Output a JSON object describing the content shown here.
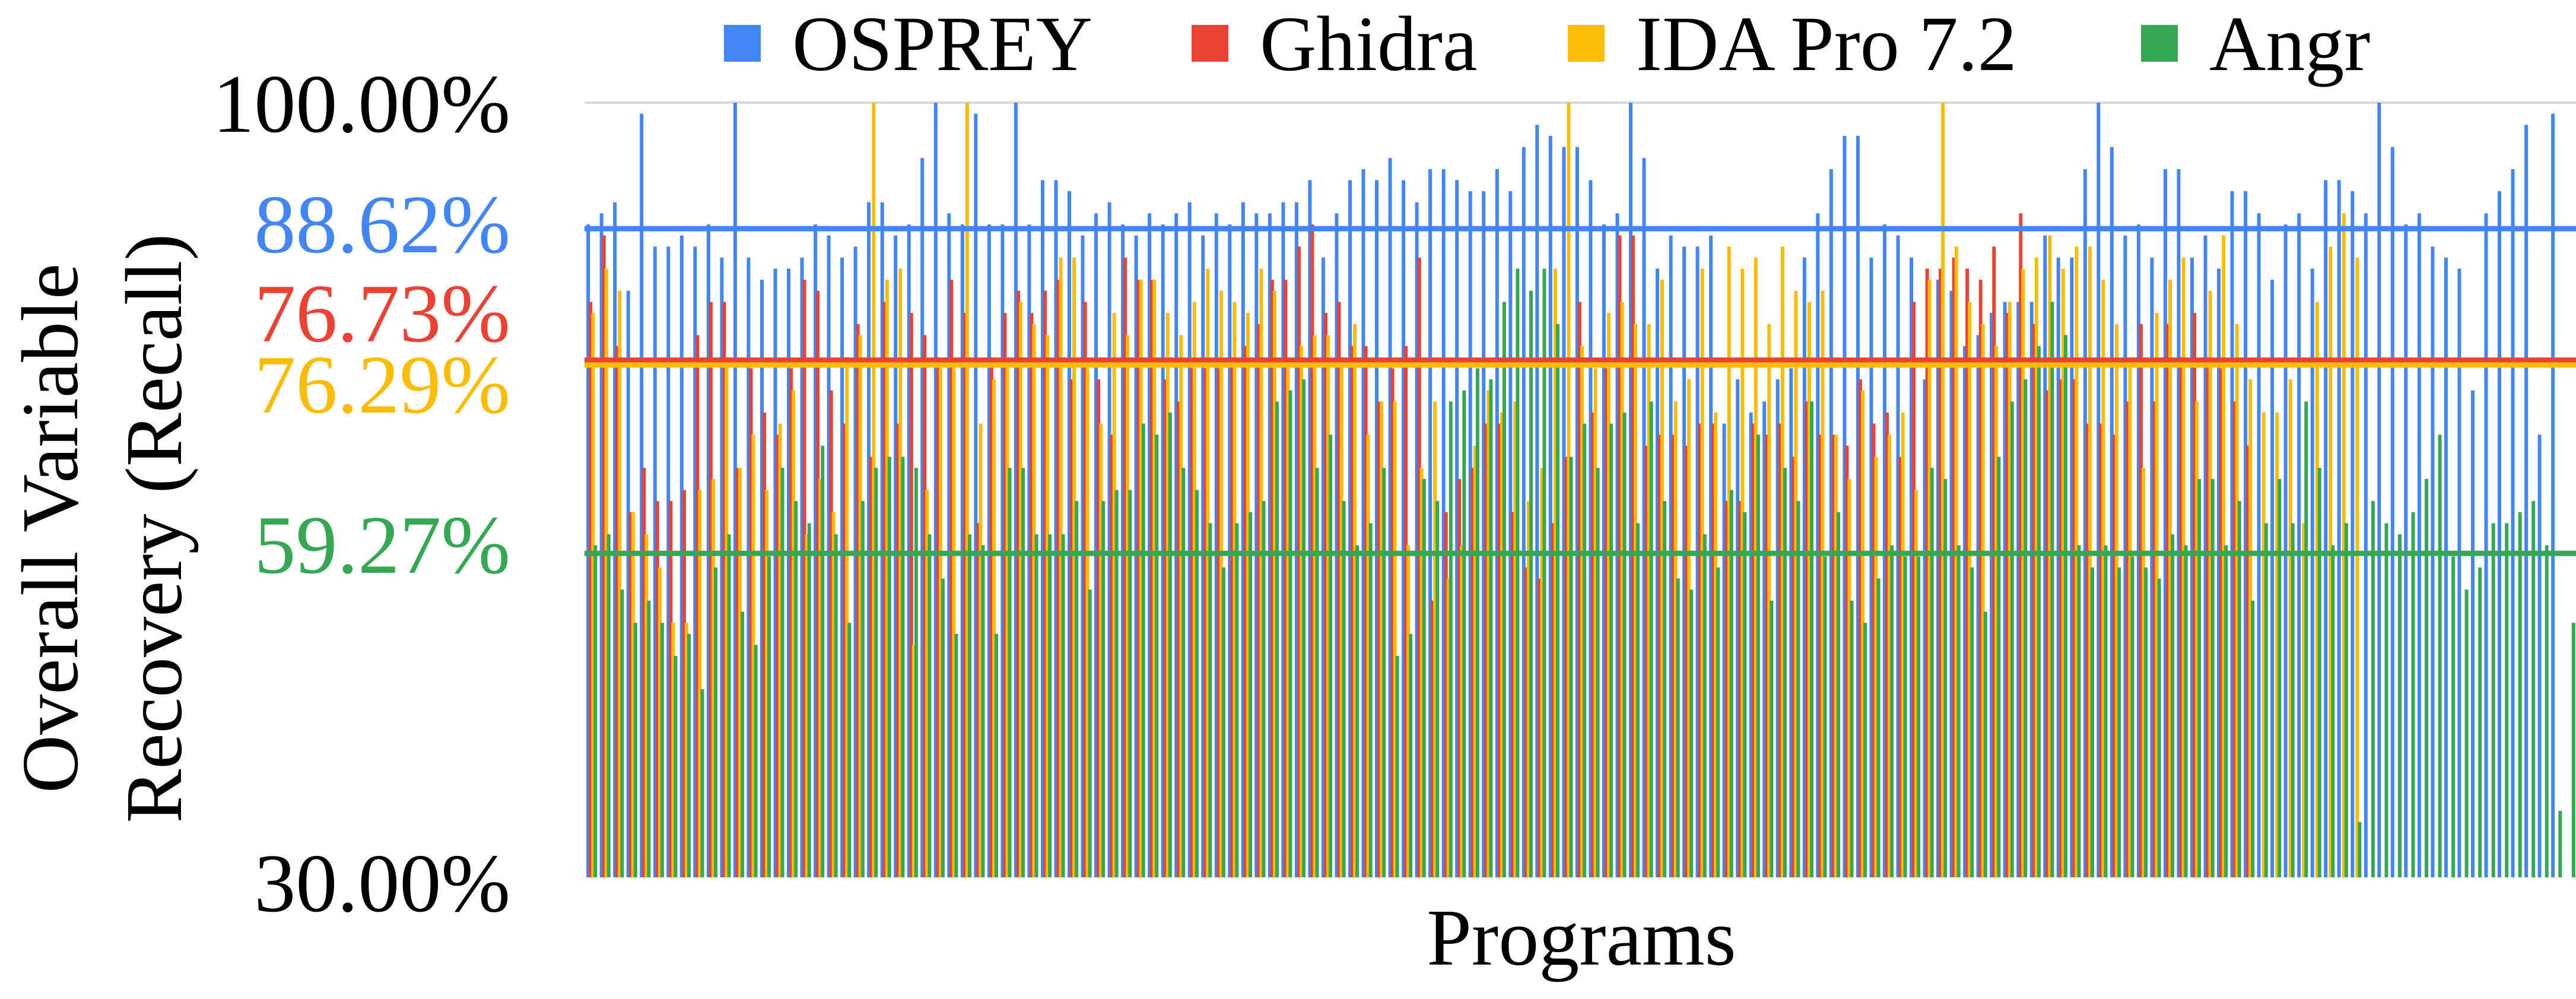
{
  "chart_data": {
    "type": "bar",
    "xlabel": "Programs",
    "ylabel_lines": [
      "Overall Variable",
      "Recovery (Recall)"
    ],
    "ylim": [
      30,
      100
    ],
    "y_ticks": [
      {
        "value": 30,
        "label": "30.00%"
      },
      {
        "value": 100,
        "label": "100.00%"
      }
    ],
    "legend_position": "top",
    "series": [
      {
        "name": "OSPREY",
        "color": "#4285F4",
        "average": 88.62,
        "average_label": "88.62%",
        "values": [
          89,
          90,
          91,
          83,
          99,
          87,
          87,
          88,
          87,
          89,
          86,
          100,
          86,
          84,
          85,
          85,
          86,
          89,
          88,
          86,
          87,
          91,
          91,
          88,
          89,
          95,
          100,
          90,
          89,
          99,
          89,
          89,
          100,
          89,
          93,
          93,
          92,
          88,
          90,
          91,
          89,
          88,
          90,
          89,
          90,
          91,
          88,
          90,
          89,
          91,
          90,
          90,
          91,
          91,
          93,
          86,
          90,
          93,
          94,
          93,
          95,
          93,
          91,
          94,
          94,
          93,
          92,
          92,
          94,
          92,
          96,
          98,
          97,
          96,
          96,
          93,
          89,
          90,
          100,
          95,
          85,
          88,
          87,
          87,
          88,
          71,
          75,
          72,
          73,
          75,
          76,
          86,
          90,
          94,
          97,
          97,
          86,
          89,
          88,
          86,
          75,
          84,
          83,
          78,
          79,
          81,
          82,
          82,
          82,
          88,
          86,
          86,
          94,
          100,
          96,
          88,
          89,
          86,
          94,
          94,
          86,
          88,
          85,
          92,
          92,
          90,
          84,
          89,
          90,
          85,
          93,
          93,
          92,
          90,
          100,
          96,
          89,
          90,
          87,
          86,
          85,
          74,
          90,
          92,
          94,
          98,
          70,
          99
        ]
      },
      {
        "name": "Ghidra",
        "color": "#EA4335",
        "average": 76.73,
        "average_label": "76.73%",
        "values": [
          82,
          88,
          78,
          63,
          67,
          64,
          64,
          65,
          79,
          82,
          82,
          67,
          76,
          72,
          70,
          76,
          84,
          83,
          74,
          71,
          80,
          68,
          82,
          71,
          81,
          79,
          77,
          84,
          81,
          62,
          77,
          81,
          83,
          81,
          83,
          84,
          75,
          82,
          75,
          70,
          86,
          84,
          84,
          75,
          73,
          76,
          76,
          76,
          77,
          78,
          80,
          84,
          84,
          87,
          89,
          81,
          82,
          78,
          78,
          73,
          76,
          78,
          86,
          55,
          63,
          66,
          67,
          71,
          71,
          63,
          58,
          57,
          62,
          68,
          82,
          72,
          76,
          88,
          88,
          69,
          70,
          70,
          69,
          71,
          71,
          64,
          64,
          71,
          70,
          71,
          68,
          73,
          70,
          70,
          69,
          75,
          71,
          72,
          68,
          82,
          85,
          85,
          86,
          85,
          84,
          87,
          81,
          90,
          80,
          74,
          75,
          75,
          71,
          71,
          70,
          73,
          80,
          73,
          80,
          77,
          81,
          77,
          76,
          73,
          69
        ]
      },
      {
        "name": "IDA Pro 7.2",
        "color": "#FBBC04",
        "average": 76.29,
        "average_label": "76.29%",
        "values": [
          81,
          85,
          83,
          63,
          61,
          58,
          53,
          53,
          65,
          66,
          77,
          67,
          70,
          65,
          71,
          74,
          61,
          66,
          63,
          77,
          79,
          100,
          84,
          85,
          51,
          65,
          76,
          76,
          100,
          71,
          75,
          77,
          82,
          80,
          79,
          86,
          86,
          76,
          71,
          81,
          79,
          84,
          84,
          81,
          79,
          82,
          85,
          83,
          82,
          81,
          85,
          83,
          76,
          78,
          79,
          79,
          77,
          80,
          70,
          73,
          73,
          60,
          67,
          73,
          57,
          60,
          69,
          74,
          72,
          73,
          64,
          67,
          85,
          100,
          78,
          76,
          81,
          82,
          80,
          80,
          84,
          73,
          75,
          85,
          72,
          87,
          85,
          86,
          80,
          87,
          83,
          82,
          83,
          70,
          66,
          74,
          68,
          70,
          72,
          65,
          84,
          100,
          87,
          82,
          80,
          78,
          82,
          85,
          86,
          88,
          85,
          87,
          87,
          84,
          80,
          77,
          67,
          81,
          84,
          86,
          73,
          83,
          88,
          80,
          75,
          72,
          72,
          75,
          62,
          82,
          87,
          90,
          86
        ]
      },
      {
        "name": "Angr",
        "color": "#34A853",
        "average": 59.27,
        "average_label": "59.27%",
        "values": [
          60,
          61,
          56,
          53,
          55,
          53,
          50,
          52,
          47,
          58,
          61,
          54,
          51,
          59,
          67,
          64,
          62,
          69,
          61,
          53,
          64,
          67,
          68,
          68,
          67,
          61,
          57,
          52,
          61,
          60,
          52,
          67,
          67,
          61,
          61,
          61,
          64,
          56,
          64,
          65,
          65,
          71,
          70,
          72,
          67,
          65,
          62,
          58,
          62,
          63,
          64,
          73,
          74,
          75,
          67,
          70,
          64,
          60,
          62,
          67,
          50,
          52,
          66,
          64,
          73,
          74,
          76,
          75,
          82,
          85,
          83,
          85,
          80,
          68,
          71,
          67,
          71,
          72,
          62,
          73,
          64,
          57,
          56,
          61,
          58,
          65,
          63,
          70,
          55,
          67,
          64,
          73,
          59,
          63,
          55,
          53,
          57,
          60,
          59,
          59,
          67,
          66,
          60,
          58,
          54,
          68,
          73,
          75,
          78,
          82,
          79,
          60,
          58,
          60,
          58,
          59,
          58,
          57,
          61,
          60,
          66,
          66,
          60,
          64,
          55,
          62,
          66,
          62,
          73,
          67,
          60,
          62,
          35,
          64,
          62,
          61,
          63,
          66,
          70,
          59,
          56,
          58,
          62,
          62,
          63,
          64,
          60,
          36,
          53
        ]
      }
    ]
  }
}
